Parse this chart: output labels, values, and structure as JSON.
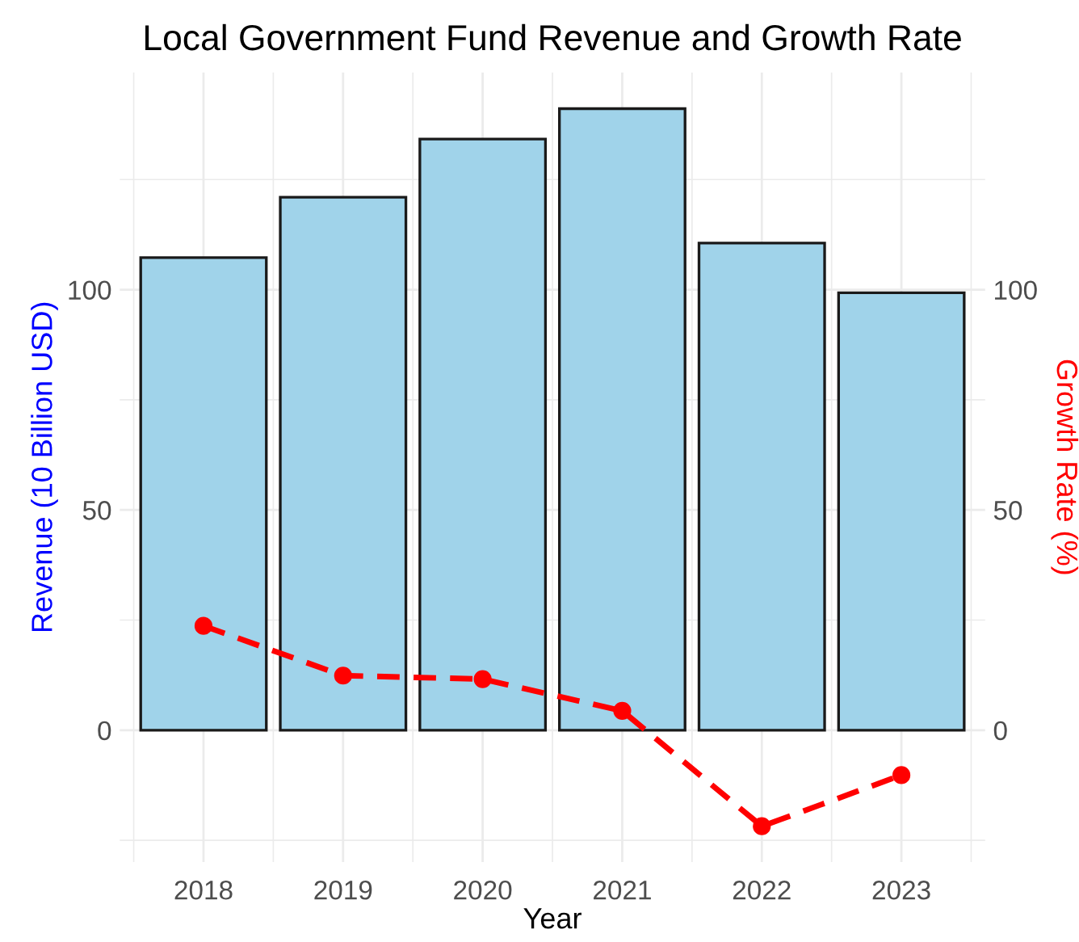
{
  "chart_data": {
    "type": "bar",
    "title": "Local Government Fund Revenue and Growth Rate",
    "xlabel": "Year",
    "ylabel": "Revenue (10 Billion USD)",
    "y2label": "Growth Rate (%)",
    "categories": [
      "2018",
      "2019",
      "2020",
      "2021",
      "2022",
      "2023"
    ],
    "series": [
      {
        "color": "#a0d3ea",
        "values": [
          107.3,
          121.0,
          134.2,
          141.1,
          110.6,
          99.3
        ]
      },
      {
        "type": "line",
        "axis": "y2",
        "color": "#ff0000",
        "marker": "circle",
        "line_style": "dashed",
        "values": [
          23.7,
          12.4,
          11.6,
          4.4,
          -21.8,
          -10.2
        ]
      }
    ],
    "ylim": [
      -29.9,
      149.3
    ],
    "yticks": [
      0,
      50,
      100
    ],
    "y2lim": [
      -29.9,
      149.3
    ],
    "y2ticks": [
      0,
      50,
      100
    ],
    "grid": true
  }
}
